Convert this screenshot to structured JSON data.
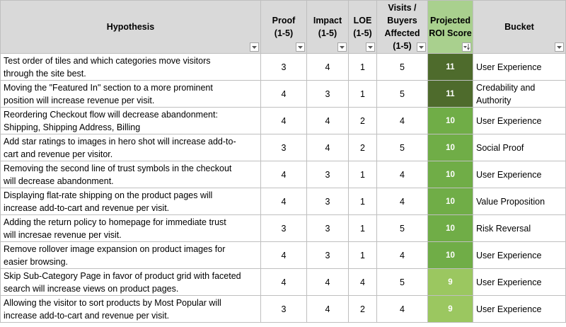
{
  "headers": {
    "hypothesis": "Hypothesis",
    "proof": [
      "Proof",
      "(1-5)"
    ],
    "impact": [
      "Impact",
      "(1-5)"
    ],
    "loe": [
      "LOE",
      "(1-5)"
    ],
    "visits": [
      "Visits /",
      "Buyers",
      "Affected",
      "(1-5)"
    ],
    "roi": [
      "Projected",
      "ROI Score"
    ],
    "bucket": "Bucket"
  },
  "colors": {
    "header_bg": "#d9d9d9",
    "roi_header_bg": "#a9d08e",
    "roi_11": "#4e6b2c",
    "roi_10": "#70ad47",
    "roi_9": "#9bc760"
  },
  "icons": {
    "filter": "filter-dropdown-arrow-icon",
    "sort_desc": "sort-descending-icon"
  },
  "rows": [
    {
      "hypothesis_lines": [
        "Test order of tiles and which categories move visitors",
        "through the site best."
      ],
      "proof": "3",
      "impact": "4",
      "loe": "1",
      "visits": "5",
      "roi": "11",
      "bucket_lines": [
        "User Experience"
      ]
    },
    {
      "hypothesis_lines": [
        "Moving the \"Featured In\" section to a more prominent",
        "position will increase revenue per visit."
      ],
      "proof": "4",
      "impact": "3",
      "loe": "1",
      "visits": "5",
      "roi": "11",
      "bucket_lines": [
        "Credability and",
        "Authority"
      ]
    },
    {
      "hypothesis_lines": [
        "Reordering Checkout flow will decrease abandonment:",
        "Shipping, Shipping Address, Billing"
      ],
      "proof": "4",
      "impact": "4",
      "loe": "2",
      "visits": "4",
      "roi": "10",
      "bucket_lines": [
        "User Experience"
      ]
    },
    {
      "hypothesis_lines": [
        "Add star ratings to images in hero shot will increase add-to-",
        "cart and revenue per visitor."
      ],
      "proof": "3",
      "impact": "4",
      "loe": "2",
      "visits": "5",
      "roi": "10",
      "bucket_lines": [
        "Social Proof"
      ]
    },
    {
      "hypothesis_lines": [
        "Removing the second line of trust symbols in the checkout",
        "will decrease abandonment."
      ],
      "proof": "4",
      "impact": "3",
      "loe": "1",
      "visits": "4",
      "roi": "10",
      "bucket_lines": [
        "User Experience"
      ]
    },
    {
      "hypothesis_lines": [
        "Displaying flat-rate shipping on the product pages will",
        "increase add-to-cart and revenue per visit."
      ],
      "proof": "4",
      "impact": "3",
      "loe": "1",
      "visits": "4",
      "roi": "10",
      "bucket_lines": [
        "Value Proposition"
      ]
    },
    {
      "hypothesis_lines": [
        "Adding the return policy to homepage for immediate trust",
        "will incresae revenue per visit."
      ],
      "proof": "3",
      "impact": "3",
      "loe": "1",
      "visits": "5",
      "roi": "10",
      "bucket_lines": [
        "Risk Reversal"
      ]
    },
    {
      "hypothesis_lines": [
        "Remove rollover image expansion on product images for",
        "easier browsing."
      ],
      "proof": "4",
      "impact": "3",
      "loe": "1",
      "visits": "4",
      "roi": "10",
      "bucket_lines": [
        "User Experience"
      ]
    },
    {
      "hypothesis_lines": [
        "Skip Sub-Category Page in favor of product grid with faceted",
        "search will increase views on product pages."
      ],
      "proof": "4",
      "impact": "4",
      "loe": "4",
      "visits": "5",
      "roi": "9",
      "bucket_lines": [
        "User Experience"
      ]
    },
    {
      "hypothesis_lines": [
        "Allowing the visitor to sort products by Most Popular will",
        "increase add-to-cart and revenue per visit."
      ],
      "proof": "3",
      "impact": "4",
      "loe": "2",
      "visits": "4",
      "roi": "9",
      "bucket_lines": [
        "User Experience"
      ]
    }
  ]
}
